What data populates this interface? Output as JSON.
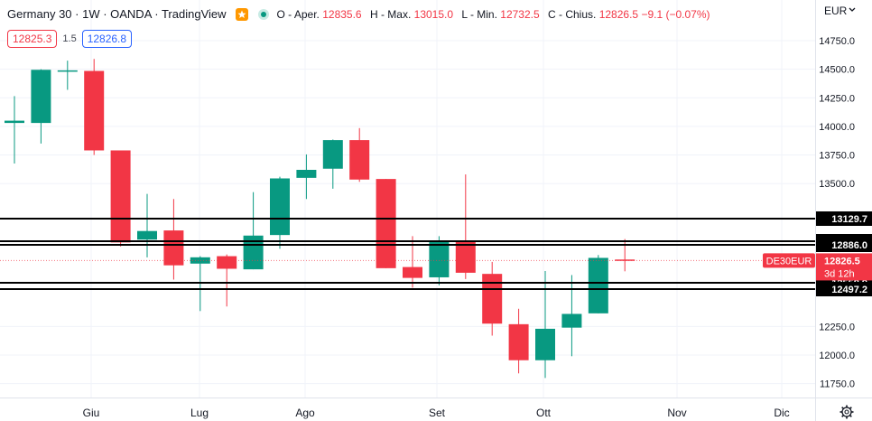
{
  "header": {
    "title": "Germany 30 · 1W · OANDA · TradingView",
    "ohlc": {
      "o_label": "O - Aper.",
      "o_value": "12835.6",
      "h_label": "H - Max.",
      "h_value": "13015.0",
      "l_label": "L - Min.",
      "l_value": "12732.5",
      "c_label": "C - Chius.",
      "c_value": "12826.5",
      "change": "−9.1 (−0.07%)"
    }
  },
  "trade": {
    "sell": "12825.3",
    "spread": "1.5",
    "buy": "12826.8"
  },
  "currency_label": "EUR",
  "icons": {
    "star": "star-icon",
    "live": "live-dot-icon",
    "dropdown": "chevron-down-icon",
    "settings": "gear-icon"
  },
  "colors": {
    "up": "#089981",
    "down": "#f23645",
    "grid": "#f0f3fa",
    "text": "#131722",
    "level": "#000000",
    "symbol_tag": "#f23645"
  },
  "chart_data": {
    "type": "candlestick",
    "y_min": 11500,
    "y_max": 14900,
    "x_labels": [
      "Giu",
      "Lug",
      "Ago",
      "Set",
      "Ott",
      "Nov",
      "Dic"
    ],
    "y_ticks": [
      {
        "value": 14750,
        "label": "14750.0"
      },
      {
        "value": 14500,
        "label": "14500.0"
      },
      {
        "value": 14250,
        "label": "14250.0"
      },
      {
        "value": 14000,
        "label": "14000.0"
      },
      {
        "value": 13750,
        "label": "13750.0"
      },
      {
        "value": 13500,
        "label": "13500.0"
      },
      {
        "value": 12250,
        "label": "12250.0"
      },
      {
        "value": 12000,
        "label": "12000.0"
      },
      {
        "value": 11750,
        "label": "11750.0"
      }
    ],
    "candles": [
      {
        "o": 14030,
        "h": 14265,
        "l": 13675,
        "c": 14050
      },
      {
        "o": 14030,
        "h": 14500,
        "l": 13850,
        "c": 14495
      },
      {
        "o": 14480,
        "h": 14575,
        "l": 14320,
        "c": 14490
      },
      {
        "o": 14485,
        "h": 14590,
        "l": 13750,
        "c": 13790
      },
      {
        "o": 13790,
        "h": 13790,
        "l": 12950,
        "c": 12985
      },
      {
        "o": 13010,
        "h": 13410,
        "l": 12855,
        "c": 13085
      },
      {
        "o": 13090,
        "h": 13365,
        "l": 12660,
        "c": 12785
      },
      {
        "o": 12800,
        "h": 12865,
        "l": 12385,
        "c": 12855
      },
      {
        "o": 12865,
        "h": 12880,
        "l": 12425,
        "c": 12755
      },
      {
        "o": 12750,
        "h": 13425,
        "l": 12750,
        "c": 13045
      },
      {
        "o": 13050,
        "h": 13560,
        "l": 12930,
        "c": 13545
      },
      {
        "o": 13550,
        "h": 13755,
        "l": 13365,
        "c": 13620
      },
      {
        "o": 13630,
        "h": 13885,
        "l": 13455,
        "c": 13880
      },
      {
        "o": 13880,
        "h": 13985,
        "l": 13515,
        "c": 13535
      },
      {
        "o": 13540,
        "h": 13540,
        "l": 12760,
        "c": 12760
      },
      {
        "o": 12770,
        "h": 13040,
        "l": 12590,
        "c": 12675
      },
      {
        "o": 12680,
        "h": 13040,
        "l": 12610,
        "c": 13000
      },
      {
        "o": 13000,
        "h": 13580,
        "l": 12665,
        "c": 12720
      },
      {
        "o": 12710,
        "h": 12815,
        "l": 12170,
        "c": 12275
      },
      {
        "o": 12270,
        "h": 12405,
        "l": 11840,
        "c": 11955
      },
      {
        "o": 11955,
        "h": 12735,
        "l": 11800,
        "c": 12230
      },
      {
        "o": 12240,
        "h": 12700,
        "l": 11990,
        "c": 12360
      },
      {
        "o": 12365,
        "h": 12875,
        "l": 12365,
        "c": 12850
      },
      {
        "o": 12835.6,
        "h": 13015.0,
        "l": 12732.5,
        "c": 12826.5
      }
    ],
    "levels": [
      {
        "label": "13129.7"
      },
      {
        "label": "12921.4"
      },
      {
        "label": "12886.0"
      },
      {
        "label": "12558.9"
      },
      {
        "label": "12497.2"
      }
    ],
    "last_price": {
      "symbol": "DE30EUR",
      "price": "12826.5",
      "countdown": "3d 12h"
    }
  }
}
